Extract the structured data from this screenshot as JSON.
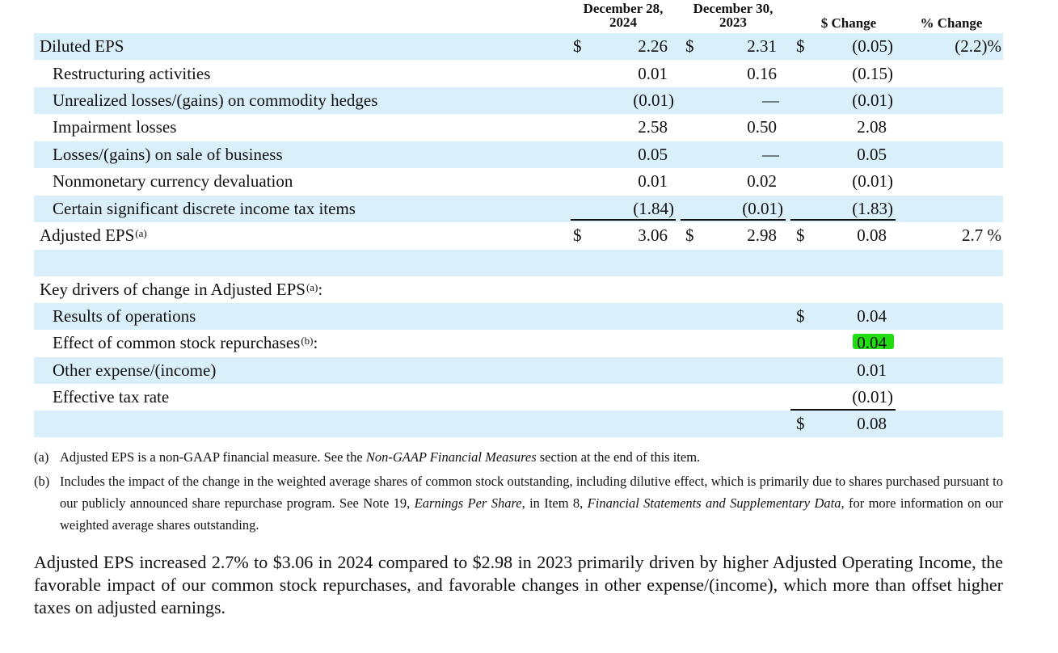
{
  "headers": {
    "col1": "December 28,\n2024",
    "col2": "December 30,\n2023",
    "col3": "$ Change",
    "col4": "% Change"
  },
  "rows": [
    {
      "label": "Diluted EPS",
      "c1": "2.26",
      "c2": "2.31",
      "c3": "(0.05)",
      "c4": "(2.2)%",
      "d1": "$",
      "d2": "$",
      "d3": "$"
    },
    {
      "label": "Restructuring activities",
      "c1": "0.01",
      "c2": "0.16",
      "c3": "(0.15)"
    },
    {
      "label": "Unrealized losses/(gains) on commodity hedges",
      "c1": "(0.01)",
      "c2": "—",
      "c3": "(0.01)"
    },
    {
      "label": "Impairment losses",
      "c1": "2.58",
      "c2": "0.50",
      "c3": "2.08"
    },
    {
      "label": "Losses/(gains) on sale of business",
      "c1": "0.05",
      "c2": "—",
      "c3": "0.05"
    },
    {
      "label": "Nonmonetary currency devaluation",
      "c1": "0.01",
      "c2": "0.02",
      "c3": "(0.01)"
    },
    {
      "label": "Certain significant discrete income tax items",
      "c1": "(1.84)",
      "c2": "(0.01)",
      "c3": "(1.83)"
    },
    {
      "label": "Adjusted EPS",
      "sup": "(a)",
      "c1": "3.06",
      "c2": "2.98",
      "c3": "0.08",
      "c4": "2.7 %",
      "d1": "$",
      "d2": "$",
      "d3": "$"
    },
    {
      "label": "Key drivers of change in Adjusted EPS",
      "sup": "(a)",
      "suffix": ":"
    },
    {
      "label": "Results of operations",
      "c3": "0.04",
      "d3": "$"
    },
    {
      "label": "Effect of common stock repurchases",
      "sup": "(b)",
      "suffix": ":",
      "c3": "0.04"
    },
    {
      "label": "Other expense/(income)",
      "c3": "0.01"
    },
    {
      "label": "Effective tax rate",
      "c3": "(0.01)"
    },
    {
      "total": "0.08",
      "d3": "$"
    }
  ],
  "footnotes": {
    "a_tag": "(a)",
    "a_text_1": "Adjusted EPS is a non-GAAP financial measure. See the ",
    "a_text_em": "Non-GAAP Financial Measures",
    "a_text_2": " section at the end of this item.",
    "b_tag": "(b)",
    "b_text_1": "Includes the impact of the change in the weighted average shares of common stock outstanding, including dilutive effect, which is primarily due to shares purchased pursuant to our publicly announced share repurchase program. See Note 19, ",
    "b_text_em1": "Earnings Per Share",
    "b_text_2": ", in Item 8, ",
    "b_text_em2": "Financial Statements and Supplementary Data,",
    "b_text_3": " for more information on our weighted average shares outstanding."
  },
  "paragraph": "Adjusted EPS increased 2.7% to $3.06 in 2024 compared to $2.98 in 2023 primarily driven by higher Adjusted Operating Income, the favorable impact of our common stock repurchases, and favorable changes in other expense/(income), which more than offset higher taxes on adjusted earnings.",
  "highlight_color": "#22dd11",
  "row_shade_color": "#d9f0fb"
}
